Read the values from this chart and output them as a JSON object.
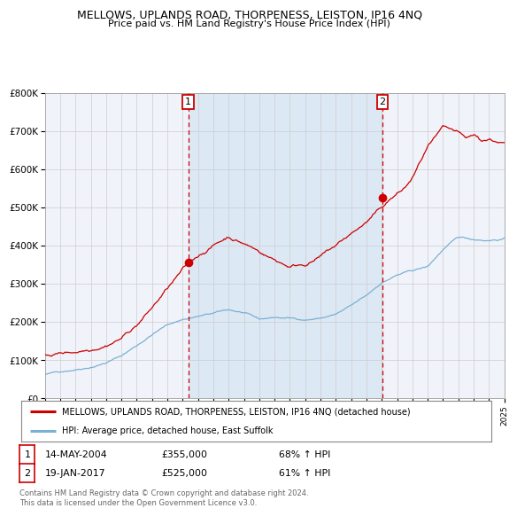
{
  "title": "MELLOWS, UPLANDS ROAD, THORPENESS, LEISTON, IP16 4NQ",
  "subtitle": "Price paid vs. HM Land Registry's House Price Index (HPI)",
  "x_start_year": 1995,
  "x_end_year": 2025,
  "y_min": 0,
  "y_max": 800000,
  "y_ticks": [
    0,
    100000,
    200000,
    300000,
    400000,
    500000,
    600000,
    700000,
    800000
  ],
  "y_tick_labels": [
    "£0",
    "£100K",
    "£200K",
    "£300K",
    "£400K",
    "£500K",
    "£600K",
    "£700K",
    "£800K"
  ],
  "sale1_date": "14-MAY-2004",
  "sale1_price": 355000,
  "sale1_hpi_pct": "68% ↑ HPI",
  "sale1_x": 2004.37,
  "sale2_date": "19-JAN-2017",
  "sale2_price": 525000,
  "sale2_hpi_pct": "61% ↑ HPI",
  "sale2_x": 2017.05,
  "red_line_color": "#cc0000",
  "blue_line_color": "#7ab0d4",
  "sale_marker_color": "#cc0000",
  "vline_color": "#cc0000",
  "grid_color": "#cccccc",
  "background_color": "#ffffff",
  "plot_bg_color": "#f0f4fa",
  "shade_color": "#dde8f5",
  "legend_label_red": "MELLOWS, UPLANDS ROAD, THORPENESS, LEISTON, IP16 4NQ (detached house)",
  "legend_label_blue": "HPI: Average price, detached house, East Suffolk",
  "footer_text": "Contains HM Land Registry data © Crown copyright and database right 2024.\nThis data is licensed under the Open Government Licence v3.0."
}
